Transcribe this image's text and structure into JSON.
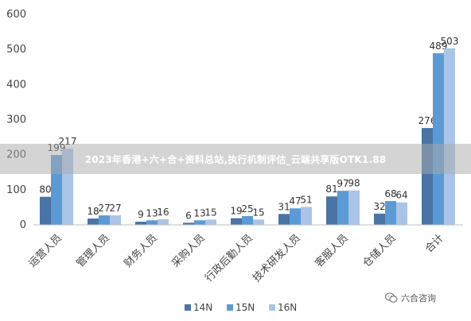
{
  "chart_data": {
    "type": "bar",
    "categories": [
      "运营人员",
      "管理人员",
      "财务人员",
      "采购人员",
      "行政后勤人员",
      "技术研发人员",
      "客服人员",
      "仓储人员",
      "合计"
    ],
    "series": [
      {
        "name": "14N",
        "color": "#4a74a6",
        "values": [
          80,
          18,
          9,
          6,
          19,
          31,
          81,
          32,
          276
        ]
      },
      {
        "name": "15N",
        "color": "#5b9ad5",
        "values": [
          199,
          27,
          13,
          13,
          25,
          47,
          97,
          68,
          489
        ]
      },
      {
        "name": "16N",
        "color": "#a9c4e6",
        "values": [
          217,
          27,
          16,
          15,
          15,
          51,
          98,
          64,
          503
        ]
      }
    ],
    "ylim": [
      0,
      600
    ],
    "yticks": [
      "0",
      "100",
      "200",
      "300",
      "400",
      "500",
      "600"
    ],
    "legend_position": "bottom-center",
    "grid": false,
    "data_labels": true
  },
  "banner": {
    "text": "2023年香港+六+合+资料总站,执行机制评估_云端共享版OTK1.88"
  },
  "watermark": {
    "text": "六合咨询",
    "icon": "wechat-icon"
  }
}
